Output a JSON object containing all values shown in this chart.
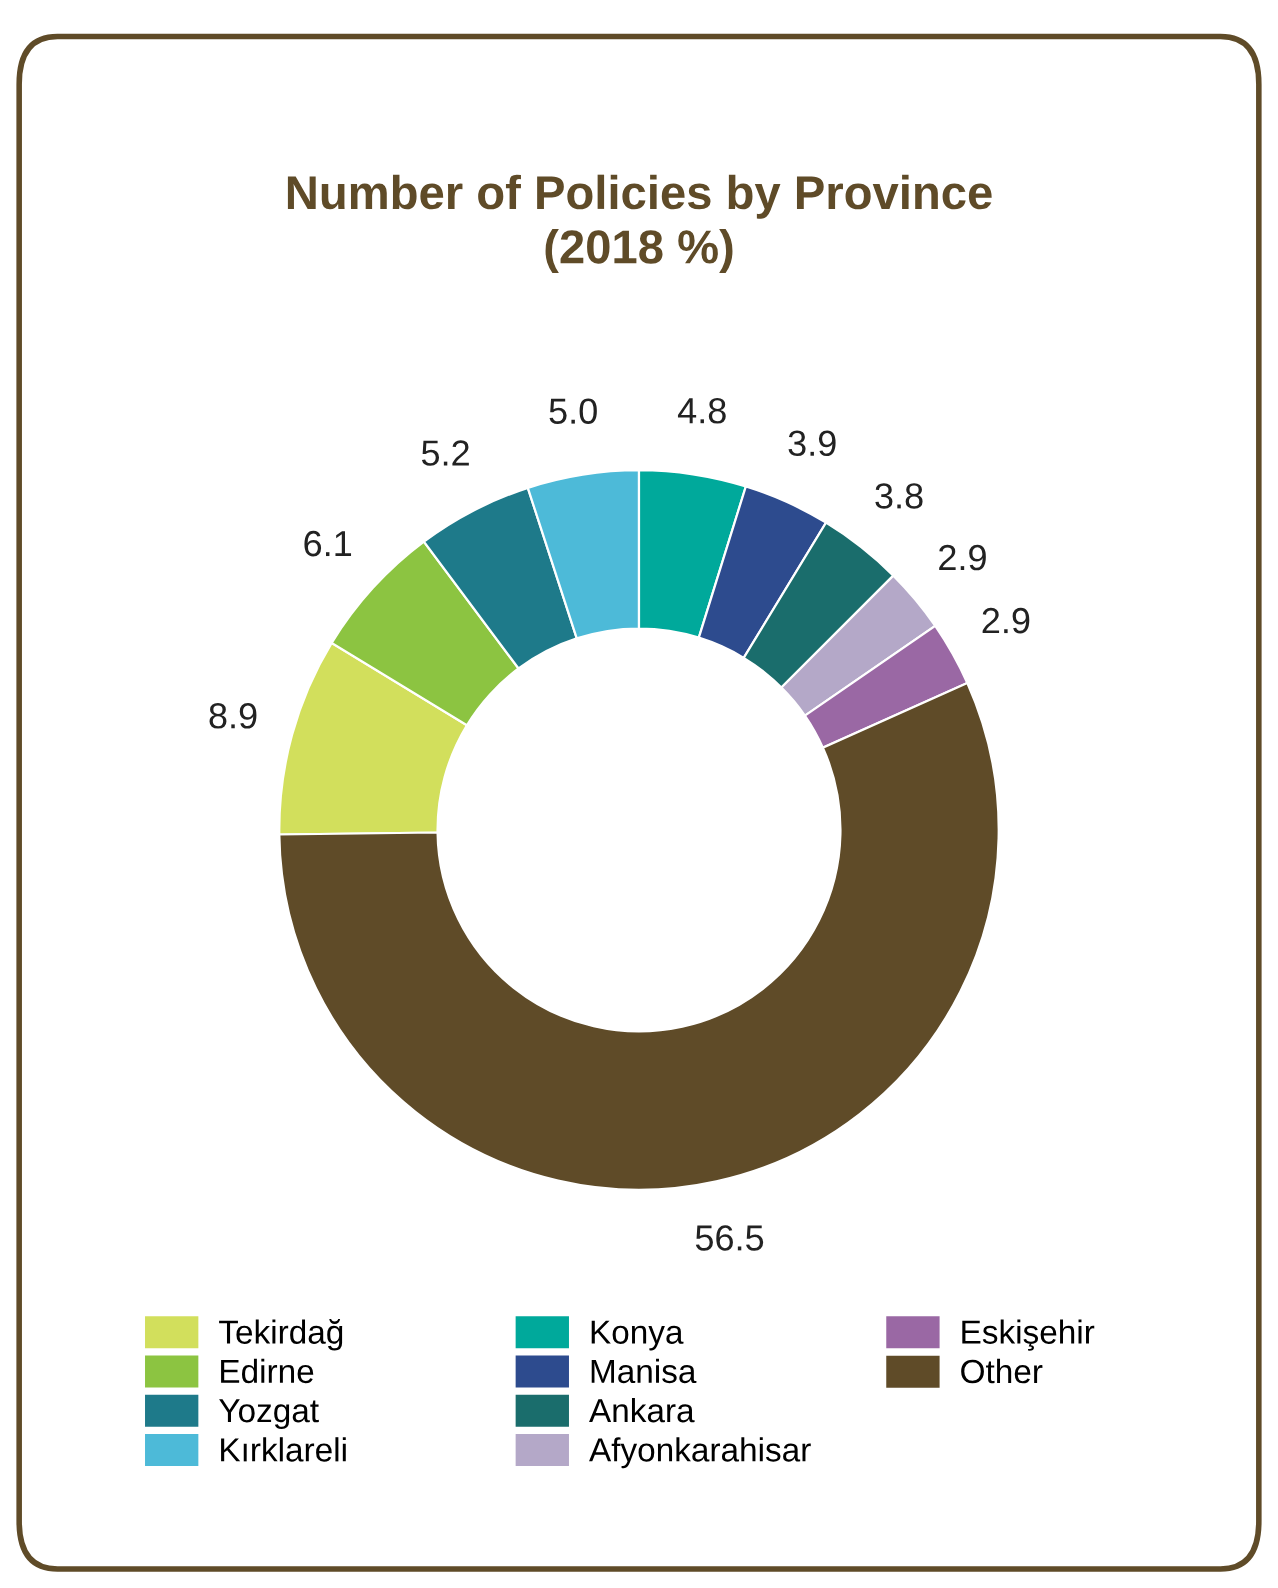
{
  "chart_data": {
    "type": "donut",
    "title": "Number of Policies by Province\n(2018 %)",
    "categories": [
      "Tekirdağ",
      "Edirne",
      "Yozgat",
      "Kırklareli",
      "Konya",
      "Manisa",
      "Ankara",
      "Afyonkarahisar",
      "Eskişehir",
      "Other"
    ],
    "values": [
      8.9,
      6.1,
      5.2,
      5.0,
      4.8,
      3.9,
      3.8,
      2.9,
      2.9,
      56.5
    ],
    "colors": [
      "#d2df5c",
      "#8cc441",
      "#1e7a8a",
      "#4dbad8",
      "#00a99b",
      "#2d4b8e",
      "#1a6d6c",
      "#b4a8c8",
      "#9a68a4",
      "#5f4b28"
    ],
    "value_labels": [
      "8.9",
      "6.1",
      "5.2",
      "5.0",
      "4.8",
      "3.9",
      "3.8",
      "2.9",
      "2.9",
      "56.5"
    ],
    "legend": "bottom"
  }
}
